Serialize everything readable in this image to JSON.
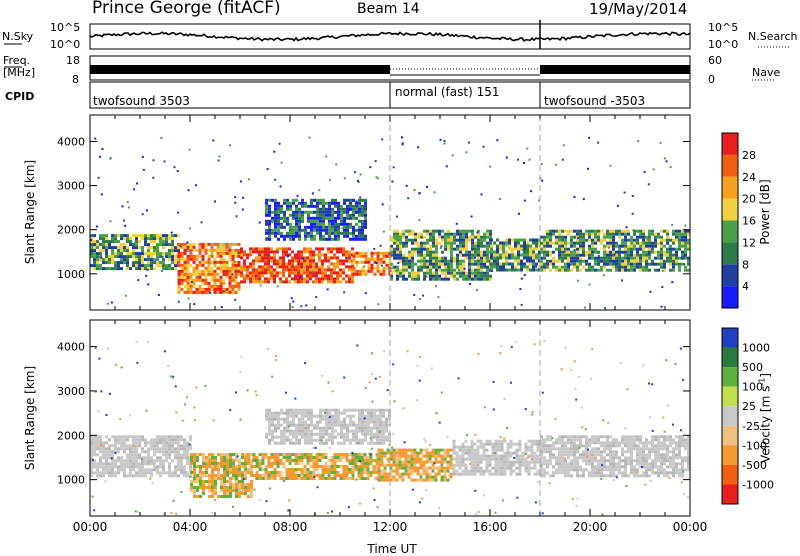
{
  "header": {
    "station": "Prince George (fitACF)",
    "beam": "Beam 14",
    "date": "19/May/2014"
  },
  "status_rows": {
    "nsky_label": "N.Sky",
    "nsearch_label": "N.Search",
    "noise_ticks_left": [
      "10^5",
      "10^0"
    ],
    "noise_ticks_right": [
      "10^5",
      "10^0"
    ],
    "freq_label": "Freq.",
    "freq_unit": "[MHz]",
    "freq_ticks": [
      "18",
      "8"
    ],
    "nave_label": "Nave",
    "nave_ticks": [
      "60",
      "0"
    ],
    "cpid_label": "CPID",
    "cpid_segments": [
      "twofsound 3503",
      "normal (fast) 151",
      "twofsound -3503"
    ]
  },
  "colors": {
    "background": "#ffffff",
    "ground_scatter": "#c8c8c8",
    "power_scale": [
      "#1a1aff",
      "#2040a0",
      "#2f7a4a",
      "#4aa04a",
      "#f0d040",
      "#f7a020",
      "#f06010",
      "#e61e1e"
    ],
    "velocity_scale": [
      "#2040c0",
      "#2a7a40",
      "#60b040",
      "#c0e050",
      "#c8c8c8",
      "#f0c080",
      "#f59a30",
      "#f06010",
      "#e61e1e"
    ]
  },
  "chart_data": [
    {
      "type": "heatmap",
      "title": "",
      "xlabel": "",
      "ylabel": "Slant Range [km]",
      "xlim": [
        "00:00",
        "24:00"
      ],
      "ylim": [
        180,
        4600
      ],
      "y_ticks": [
        1000,
        2000,
        3000,
        4000
      ],
      "colorbar_label": "Power [dB]",
      "colorbar_ticks": [
        4,
        8,
        12,
        16,
        20,
        24,
        28
      ],
      "colorbar_range": [
        0,
        32
      ],
      "grid": false,
      "segment_markers": [
        "12:00",
        "18:00"
      ],
      "bands": [
        {
          "t_start": "00:00",
          "t_end": "03:30",
          "r_low": 1100,
          "r_high": 1900,
          "power": 14
        },
        {
          "t_start": "03:30",
          "t_end": "06:00",
          "r_low": 550,
          "r_high": 1700,
          "power": 26
        },
        {
          "t_start": "06:00",
          "t_end": "10:30",
          "r_low": 800,
          "r_high": 1600,
          "power": 28
        },
        {
          "t_start": "07:00",
          "t_end": "11:00",
          "r_low": 1800,
          "r_high": 2700,
          "power": 9
        },
        {
          "t_start": "10:30",
          "t_end": "12:00",
          "r_low": 1000,
          "r_high": 1500,
          "power": 24
        },
        {
          "t_start": "12:00",
          "t_end": "16:00",
          "r_low": 900,
          "r_high": 2000,
          "power": 12
        },
        {
          "t_start": "16:00",
          "t_end": "18:00",
          "r_low": 1100,
          "r_high": 1800,
          "power": 13
        },
        {
          "t_start": "18:00",
          "t_end": "24:00",
          "r_low": 1100,
          "r_high": 2000,
          "power": 15
        }
      ]
    },
    {
      "type": "heatmap",
      "title": "",
      "xlabel": "Time UT",
      "ylabel": "Slant Range [km]",
      "xlim": [
        "00:00",
        "24:00"
      ],
      "x_ticks": [
        "00:00",
        "04:00",
        "08:00",
        "12:00",
        "16:00",
        "20:00",
        "00:00"
      ],
      "ylim": [
        180,
        4600
      ],
      "y_ticks": [
        1000,
        2000,
        3000,
        4000
      ],
      "colorbar_label": "Velocity [m s^-1]",
      "colorbar_ticks": [
        1000,
        500,
        100,
        25,
        -25,
        -100,
        -500,
        -1000
      ],
      "grid": false,
      "segment_markers": [
        "12:00",
        "18:00"
      ],
      "bands": [
        {
          "t_start": "00:00",
          "t_end": "04:00",
          "r_low": 1100,
          "r_high": 2000,
          "velocity": 0,
          "ground_scatter": true
        },
        {
          "t_start": "04:00",
          "t_end": "06:30",
          "r_low": 600,
          "r_high": 1600,
          "velocity": -300
        },
        {
          "t_start": "06:30",
          "t_end": "11:30",
          "r_low": 1000,
          "r_high": 1600,
          "velocity": -250
        },
        {
          "t_start": "07:00",
          "t_end": "12:00",
          "r_low": 1800,
          "r_high": 2600,
          "velocity": 0,
          "ground_scatter": true
        },
        {
          "t_start": "11:30",
          "t_end": "14:30",
          "r_low": 1000,
          "r_high": 1700,
          "velocity": -200
        },
        {
          "t_start": "14:30",
          "t_end": "18:00",
          "r_low": 1100,
          "r_high": 1900,
          "velocity": 0,
          "ground_scatter": true
        },
        {
          "t_start": "18:00",
          "t_end": "24:00",
          "r_low": 1100,
          "r_high": 2000,
          "velocity": 0,
          "ground_scatter": true
        }
      ]
    }
  ]
}
